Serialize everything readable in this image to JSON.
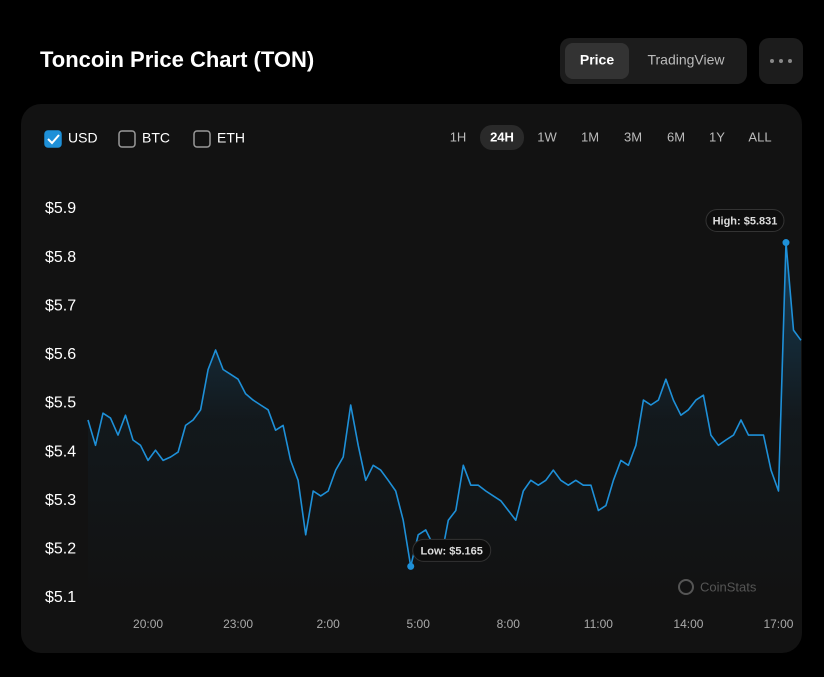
{
  "header": {
    "title": "Toncoin Price Chart (TON)",
    "views": [
      {
        "label": "Price",
        "active": true
      },
      {
        "label": "TradingView",
        "active": false
      }
    ]
  },
  "currencies": [
    {
      "label": "USD",
      "checked": true
    },
    {
      "label": "BTC",
      "checked": false
    },
    {
      "label": "ETH",
      "checked": false
    }
  ],
  "ranges": [
    {
      "label": "1H",
      "active": false
    },
    {
      "label": "24H",
      "active": true
    },
    {
      "label": "1W",
      "active": false
    },
    {
      "label": "1M",
      "active": false
    },
    {
      "label": "3M",
      "active": false
    },
    {
      "label": "6M",
      "active": false
    },
    {
      "label": "1Y",
      "active": false
    },
    {
      "label": "ALL",
      "active": false
    }
  ],
  "watermark": "CoinStats",
  "chart_data": {
    "type": "line",
    "categories": [
      null,
      null,
      null,
      null,
      null,
      null,
      null,
      null,
      "20:00",
      null,
      null,
      null,
      null,
      null,
      null,
      null,
      null,
      null,
      null,
      null,
      "23:00",
      null,
      null,
      null,
      null,
      null,
      null,
      null,
      null,
      null,
      null,
      null,
      "2:00",
      null,
      null,
      null,
      null,
      null,
      null,
      null,
      null,
      null,
      null,
      null,
      "5:00",
      null,
      null,
      null,
      null,
      null,
      null,
      null,
      null,
      null,
      null,
      null,
      "8:00",
      null,
      null,
      null,
      null,
      null,
      null,
      null,
      null,
      null,
      null,
      null,
      "11:00",
      null,
      null,
      null,
      null,
      null,
      null,
      null,
      null,
      null,
      null,
      null,
      "14:00",
      null,
      null,
      null,
      null,
      null,
      null,
      null,
      null,
      null,
      null,
      null,
      "17:00",
      null,
      null,
      null
    ],
    "series": [
      {
        "color": "#1e90d8",
        "values": [
          5.466,
          5.414,
          5.48,
          5.47,
          5.435,
          5.476,
          5.425,
          5.414,
          5.383,
          5.404,
          5.383,
          5.39,
          5.4,
          5.455,
          5.466,
          5.487,
          5.57,
          5.61,
          5.57,
          5.56,
          5.55,
          5.52,
          5.507,
          5.497,
          5.487,
          5.445,
          5.455,
          5.383,
          5.342,
          5.23,
          5.32,
          5.31,
          5.32,
          5.363,
          5.39,
          5.497,
          5.414,
          5.342,
          5.373,
          5.363,
          5.342,
          5.32,
          5.26,
          5.165,
          5.23,
          5.24,
          5.209,
          5.178,
          5.26,
          5.28,
          5.373,
          5.332,
          5.332,
          5.32,
          5.31,
          5.3,
          5.28,
          5.26,
          5.32,
          5.342,
          5.332,
          5.342,
          5.363,
          5.342,
          5.332,
          5.342,
          5.332,
          5.332,
          5.28,
          5.29,
          5.342,
          5.383,
          5.373,
          5.414,
          5.507,
          5.497,
          5.507,
          5.55,
          5.507,
          5.476,
          5.487,
          5.507,
          5.517,
          5.435,
          5.414,
          5.425,
          5.435,
          5.466,
          5.435,
          5.435,
          5.435,
          5.363,
          5.32,
          5.831,
          5.651,
          5.63
        ]
      }
    ],
    "annotations": [
      "High: $5.831",
      "Low: $5.165"
    ],
    "ylim": [
      5.1,
      5.9
    ],
    "yticks": [
      {
        "value": 5.1,
        "label": "$5.1"
      },
      {
        "value": 5.2,
        "label": "$5.2"
      },
      {
        "value": 5.3,
        "label": "$5.3"
      },
      {
        "value": 5.4,
        "label": "$5.4"
      },
      {
        "value": 5.5,
        "label": "$5.5"
      },
      {
        "value": 5.6,
        "label": "$5.6"
      },
      {
        "value": 5.7,
        "label": "$5.7"
      },
      {
        "value": 5.8,
        "label": "$5.8"
      },
      {
        "value": 5.9,
        "label": "$5.9"
      }
    ]
  }
}
